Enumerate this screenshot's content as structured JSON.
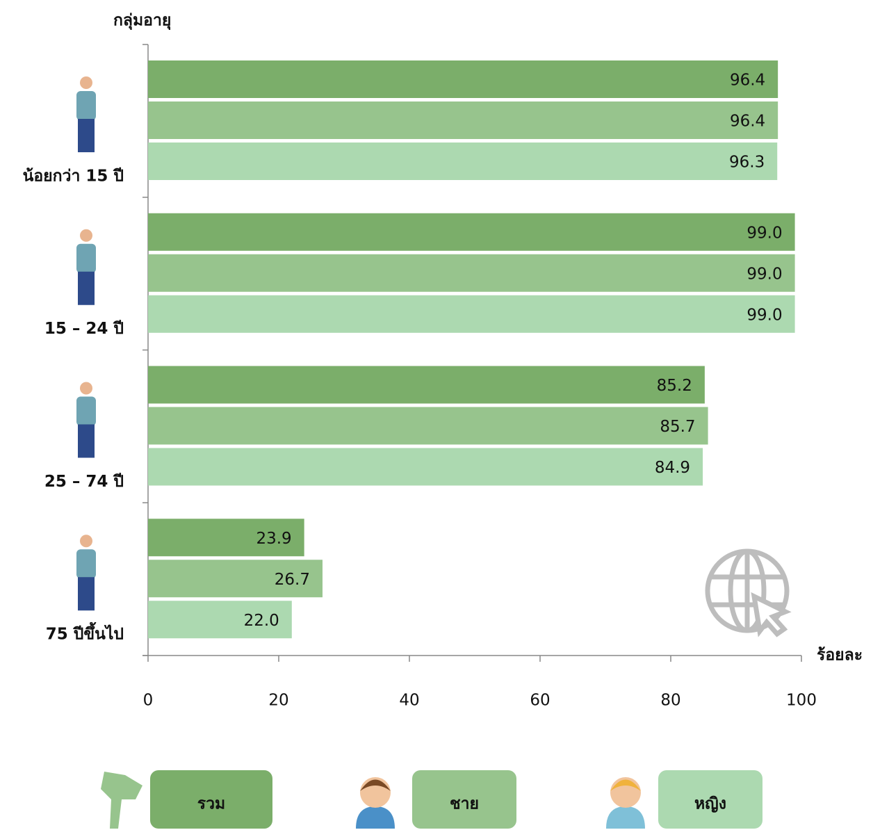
{
  "chart_data": {
    "type": "bar",
    "orientation": "horizontal",
    "y_axis_title": "กลุ่มอายุ",
    "x_axis_title": "ร้อยละ",
    "categories": [
      "น้อยกว่า 15 ปี",
      "15 – 24 ปี",
      "25 – 74 ปี",
      "75 ปีขึ้นไป"
    ],
    "series": [
      {
        "name": "รวม",
        "color": "#7bae6a",
        "values": [
          96.4,
          99.0,
          85.2,
          23.9
        ],
        "value_labels": [
          "96.4",
          "99.0",
          "85.2",
          "23.9"
        ]
      },
      {
        "name": "ชาย",
        "color": "#97c48d",
        "values": [
          96.4,
          99.0,
          85.7,
          26.7
        ],
        "value_labels": [
          "96.4",
          "99.0",
          "85.7",
          "26.7"
        ]
      },
      {
        "name": "หญิง",
        "color": "#acd9b0",
        "values": [
          96.3,
          99.0,
          84.9,
          22.0
        ],
        "value_labels": [
          "96.3",
          "99.0",
          "84.9",
          "22.0"
        ]
      }
    ],
    "xlim": [
      0,
      100
    ],
    "xticks": [
      0,
      20,
      40,
      60,
      80,
      100
    ],
    "grid": false
  }
}
